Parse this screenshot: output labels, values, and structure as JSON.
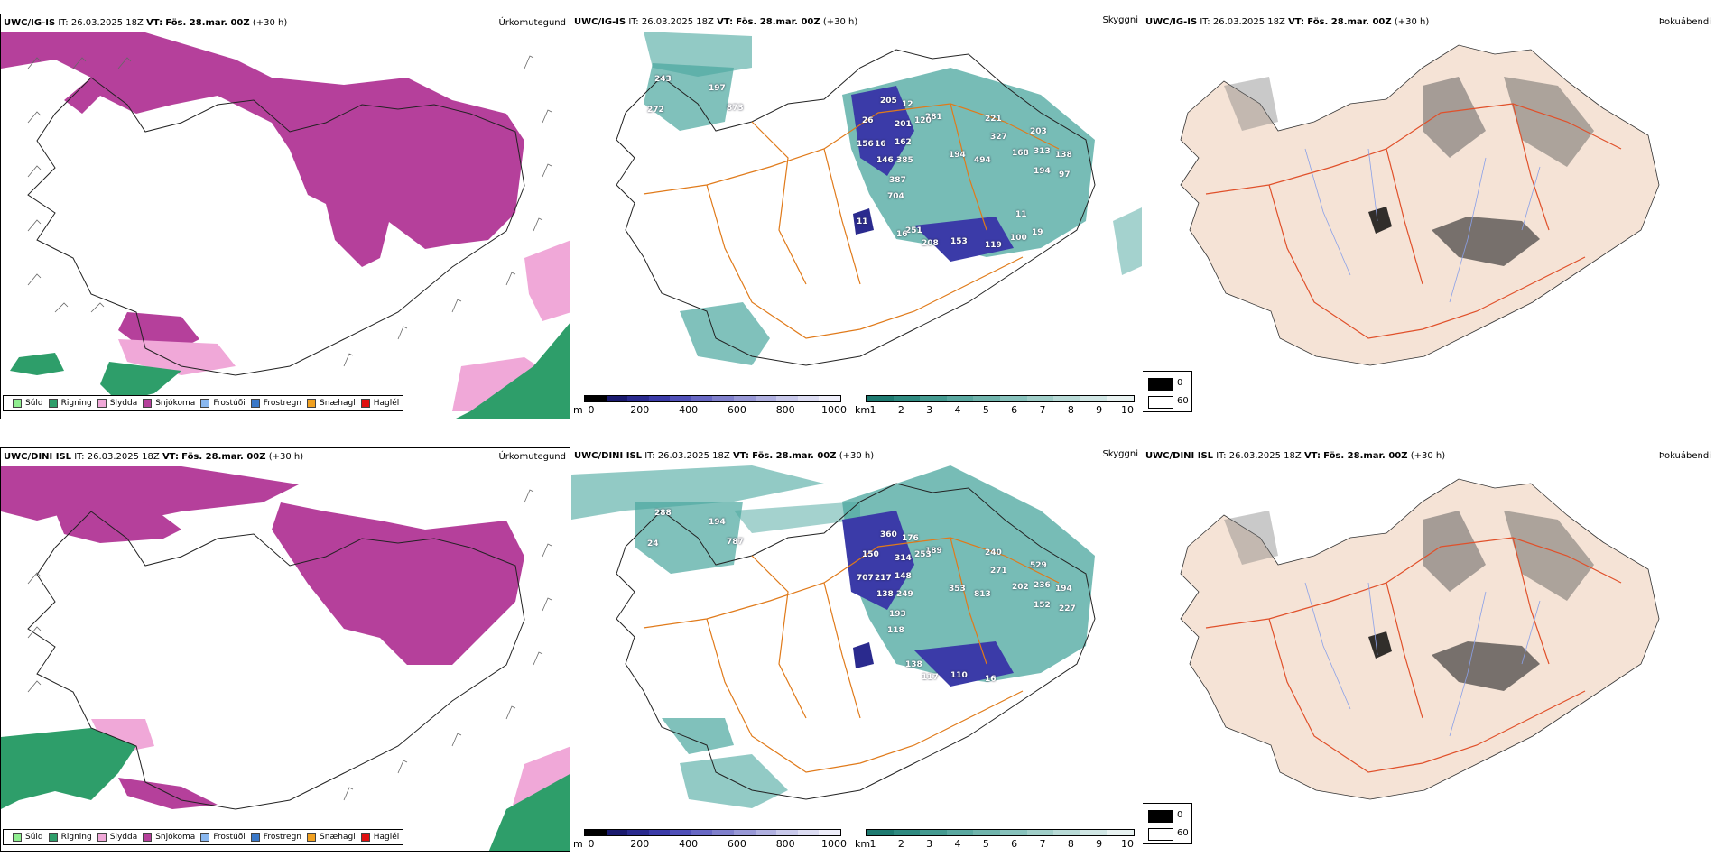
{
  "rows": [
    {
      "model": "UWC/IG-IS",
      "it_label": "IT:",
      "it": "26.03.2025 18Z",
      "vt_label": "VT:",
      "vt": "Fös. 28.mar. 00Z",
      "lead": "(+30 h)",
      "numbers": [
        "243",
        "197",
        "873",
        "272",
        "205",
        "12",
        "26",
        "201",
        "162",
        "281",
        "120",
        "156",
        "16",
        "385",
        "146",
        "387",
        "704",
        "194",
        "494",
        "221",
        "327",
        "203",
        "168",
        "313",
        "194",
        "97",
        "138",
        "251",
        "208",
        "153",
        "119",
        "100",
        "19",
        "11",
        "11",
        "16"
      ]
    },
    {
      "model": "UWC/DINI ISL",
      "it_label": "IT:",
      "it": "26.03.2025 18Z",
      "vt_label": "VT:",
      "vt": "Fös. 28.mar. 00Z",
      "lead": "(+30 h)",
      "numbers": [
        "288",
        "194",
        "787",
        "24",
        "360",
        "176",
        "150",
        "314",
        "148",
        "189",
        "253",
        "707",
        "217",
        "249",
        "138",
        "193",
        "118",
        "353",
        "813",
        "240",
        "271",
        "529",
        "202",
        "236",
        "152",
        "227",
        "194",
        "138",
        "117",
        "110",
        "16"
      ]
    }
  ],
  "panel_labels": {
    "precip": "Úrkomutegund",
    "visibility": "Skyggni",
    "fog": "Þokuábendi"
  },
  "precip_legend": [
    {
      "label": "Súld",
      "color": "#90ee90"
    },
    {
      "label": "Rigning",
      "color": "#2e9e6a"
    },
    {
      "label": "Slydda",
      "color": "#f0a8d8"
    },
    {
      "label": "Snjókoma",
      "color": "#b5409b"
    },
    {
      "label": "Frostúði",
      "color": "#8ab8f0"
    },
    {
      "label": "Frostregn",
      "color": "#3a78c8"
    },
    {
      "label": "Snæhagl",
      "color": "#f0a020"
    },
    {
      "label": "Haglél",
      "color": "#e01010"
    }
  ],
  "elev_scale": {
    "unit": "m",
    "ticks": [
      "0",
      "200",
      "400",
      "600",
      "800",
      "1000"
    ],
    "colors": [
      "#000000",
      "#1a1a6e",
      "#2a2a8e",
      "#3b3ba8",
      "#5050b8",
      "#6868c4",
      "#8080cc",
      "#9898d6",
      "#b0b0e0",
      "#c8c8ea",
      "#dcdcf2",
      "#eeeefa"
    ]
  },
  "vis_scale": {
    "unit": "km",
    "ticks": [
      "1",
      "2",
      "3",
      "4",
      "5",
      "6",
      "7",
      "8",
      "9",
      "10"
    ],
    "colors": [
      "#1e7a70",
      "#2f8a80",
      "#449a90",
      "#5aa8a0",
      "#70b4ac",
      "#88c2bc",
      "#a0cec8",
      "#b8dad6",
      "#d0e6e4",
      "#e8f2f1"
    ]
  },
  "fog_legend": {
    "items": [
      {
        "value": "0",
        "color": "#000000"
      },
      {
        "value": "60",
        "color": "#ffffff"
      }
    ]
  },
  "colors": {
    "snow": "#b5409b",
    "rain": "#2e9e6a",
    "sleet": "#f0a8d8",
    "teal": "#4aa69e",
    "road": "#e07a1a",
    "land_fog": "#f5e3d6",
    "road_fog": "#e0502a",
    "river": "#8aa0e8"
  }
}
